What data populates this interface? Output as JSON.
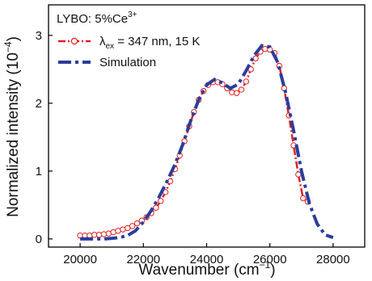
{
  "chart_data": {
    "type": "line",
    "annotation": {
      "base": "LYBO: 5%Ce",
      "sup": "3+"
    },
    "xlabel": {
      "base": "Wavenumber (cm",
      "sup": "−1",
      "tail": ")"
    },
    "ylabel": {
      "base": "Normalized intensity (10",
      "sup": "−4",
      "tail": ")"
    },
    "xlim": [
      19000,
      29000
    ],
    "ylim": [
      -0.12,
      3.45
    ],
    "xticks": [
      20000,
      22000,
      24000,
      26000,
      28000
    ],
    "yticks": [
      0,
      1,
      2,
      3
    ],
    "grid": false,
    "legend_position": "top-left",
    "series": [
      {
        "name_symbol": "λ",
        "name_sub": "ex",
        "name_rest": " = 347 nm, 15 K",
        "color": "#e02020",
        "style": "dash-dot-circles",
        "x": [
          20000,
          20150,
          20300,
          20450,
          20600,
          20750,
          20900,
          21050,
          21200,
          21350,
          21500,
          21650,
          21800,
          21950,
          22100,
          22250,
          22400,
          22550,
          22700,
          22850,
          23000,
          23150,
          23300,
          23450,
          23600,
          23750,
          23900,
          24050,
          24200,
          24350,
          24500,
          24650,
          24800,
          24950,
          25100,
          25250,
          25400,
          25550,
          25700,
          25850,
          26000,
          26150,
          26300,
          26450,
          26600,
          26750,
          26900,
          27050,
          27200
        ],
        "y": [
          0.05,
          0.05,
          0.05,
          0.06,
          0.06,
          0.07,
          0.08,
          0.1,
          0.12,
          0.14,
          0.16,
          0.19,
          0.23,
          0.27,
          0.32,
          0.38,
          0.46,
          0.56,
          0.69,
          0.85,
          1.03,
          1.23,
          1.44,
          1.66,
          1.87,
          2.05,
          2.18,
          2.27,
          2.31,
          2.31,
          2.28,
          2.22,
          2.16,
          2.15,
          2.2,
          2.32,
          2.5,
          2.66,
          2.76,
          2.8,
          2.79,
          2.74,
          2.55,
          2.22,
          1.82,
          1.38,
          0.95,
          0.6,
          0.55
        ]
      },
      {
        "name": "Simulation",
        "color": "#2b3d9c",
        "style": "dash-dot",
        "x": [
          20000,
          20250,
          20500,
          20750,
          21000,
          21250,
          21500,
          21750,
          22000,
          22250,
          22500,
          22750,
          23000,
          23250,
          23500,
          23750,
          24000,
          24250,
          24500,
          24750,
          25000,
          25250,
          25500,
          25750,
          26000,
          26250,
          26500,
          26750,
          27000,
          27250,
          27500,
          27750,
          28000
        ],
        "y": [
          0,
          0,
          0,
          0,
          0.01,
          0.02,
          0.05,
          0.12,
          0.25,
          0.42,
          0.62,
          0.85,
          1.1,
          1.4,
          1.75,
          2.05,
          2.27,
          2.35,
          2.3,
          2.22,
          2.28,
          2.48,
          2.7,
          2.85,
          2.83,
          2.6,
          2.15,
          1.6,
          1.0,
          0.52,
          0.22,
          0.06,
          0.02
        ]
      }
    ]
  }
}
